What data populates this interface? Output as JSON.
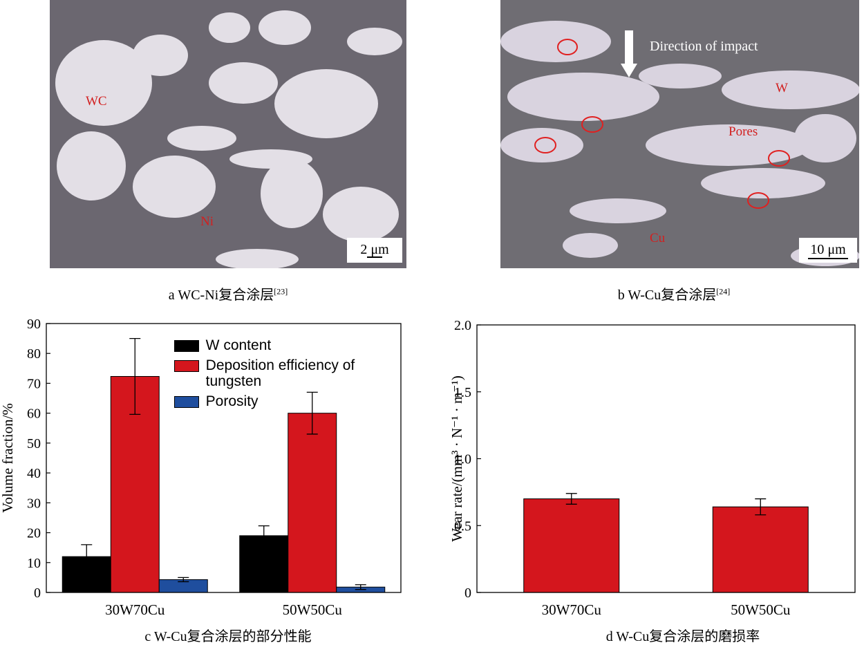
{
  "panels": [
    {
      "caption": "a  WC-Ni复合涂层",
      "ref": "[23]",
      "labels": [
        "WC",
        "Ni"
      ],
      "scale": "2 μm"
    },
    {
      "caption": "b  W-Cu复合涂层",
      "ref": "[24]",
      "labels": [
        "Direction of impact",
        "W",
        "Pores",
        "Cu"
      ],
      "scale": "10 μm"
    }
  ],
  "chart_data": [
    {
      "type": "bar",
      "caption": "c  W-Cu复合涂层的部分性能",
      "ylabel": "Volume fraction/%",
      "categories": [
        "30W70Cu",
        "50W50Cu"
      ],
      "series": [
        {
          "name": "W content",
          "color": "#000000",
          "values": [
            12,
            19
          ],
          "errors": [
            4,
            3.3
          ]
        },
        {
          "name": "Deposition efficiency of tungsten",
          "color": "#d4161d",
          "values": [
            72.3,
            60
          ],
          "errors": [
            12.7,
            7
          ]
        },
        {
          "name": "Porosity",
          "color": "#1f4e9e",
          "values": [
            4.3,
            1.8
          ],
          "errors": [
            0.7,
            0.8
          ]
        }
      ],
      "ylim": [
        0,
        90
      ],
      "yticks": [
        0,
        10,
        20,
        30,
        40,
        50,
        60,
        70,
        80,
        90
      ],
      "legend": "upper center"
    },
    {
      "type": "bar",
      "caption": "d  W-Cu复合涂层的磨损率",
      "ylabel": "Wear rate/(mm³ · N⁻¹ · m⁻¹)",
      "categories": [
        "30W70Cu",
        "50W50Cu"
      ],
      "values": [
        0.7,
        0.64
      ],
      "errors": [
        0.04,
        0.06
      ],
      "color": "#d4161d",
      "ylim": [
        0,
        2
      ],
      "yticks": [
        0,
        0.5,
        {
          "value": 1,
          "label": "1.0"
        },
        1.5,
        {
          "value": 2,
          "label": "2.0"
        }
      ]
    }
  ]
}
